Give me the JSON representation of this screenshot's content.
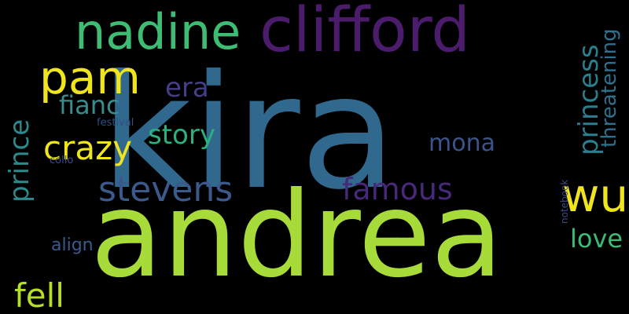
{
  "wordcloud": {
    "words": [
      {
        "text": "kira",
        "color": "#31688e"
      },
      {
        "text": "andrea",
        "color": "#a6db3a"
      },
      {
        "text": "clifford",
        "color": "#4b1b6c"
      },
      {
        "text": "nadine",
        "color": "#3fbc73"
      },
      {
        "text": "pam",
        "color": "#f0e51c"
      },
      {
        "text": "wu",
        "color": "#f0e51c"
      },
      {
        "text": "princess",
        "color": "#2b7e8e"
      },
      {
        "text": "threatening",
        "color": "#2d708e"
      },
      {
        "text": "stevens",
        "color": "#3b5a8c"
      },
      {
        "text": "crazy",
        "color": "#f0e51c"
      },
      {
        "text": "fell",
        "color": "#b5de2b"
      },
      {
        "text": "prince",
        "color": "#2d8a8c"
      },
      {
        "text": "famous",
        "color": "#482878"
      },
      {
        "text": "story",
        "color": "#2bb07f"
      },
      {
        "text": "love",
        "color": "#3bbb75"
      },
      {
        "text": "fianc",
        "color": "#3a8b8c"
      },
      {
        "text": "era",
        "color": "#433e85"
      },
      {
        "text": "mona",
        "color": "#3a548c"
      },
      {
        "text": "align",
        "color": "#3b5a8c"
      },
      {
        "text": "festival",
        "color": "#2d4f80"
      },
      {
        "text": "collo",
        "color": "#3e4a89"
      },
      {
        "text": "notebook",
        "color": "#3e4a89"
      }
    ]
  }
}
